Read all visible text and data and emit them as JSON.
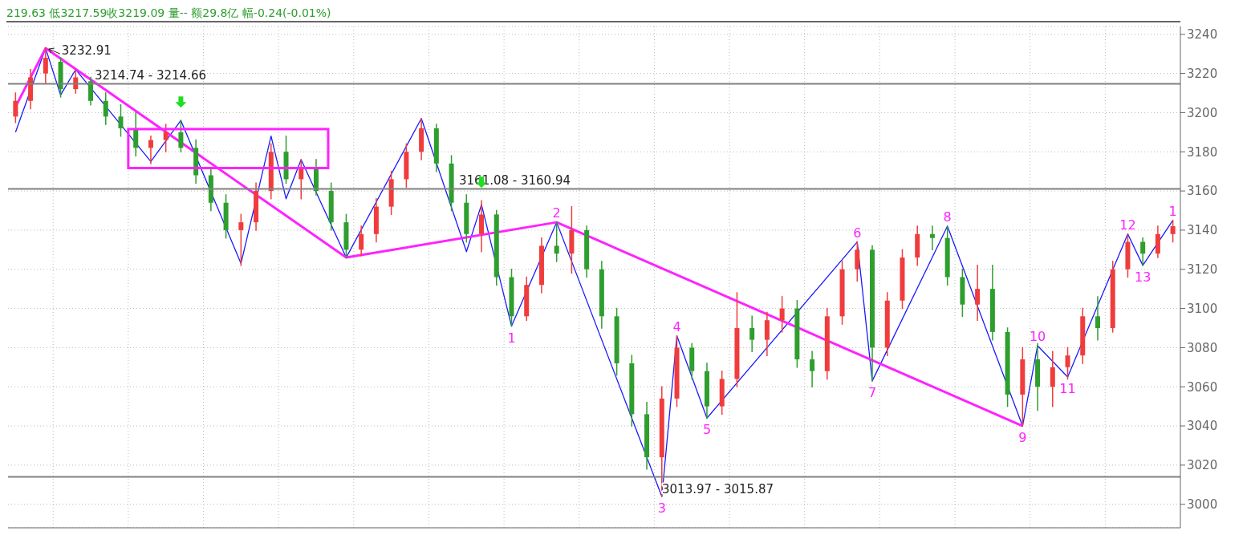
{
  "chart_data": {
    "type": "candlestick",
    "categories": [
      null,
      null,
      null,
      null,
      null,
      null,
      null,
      null,
      null,
      null,
      null,
      null,
      null,
      null,
      null,
      null,
      null,
      null,
      null,
      null,
      null,
      null,
      null,
      null,
      null,
      null,
      null,
      null,
      null,
      null,
      null,
      null,
      null,
      null,
      null,
      null,
      null,
      null,
      null,
      null,
      null,
      null,
      null,
      null,
      null,
      null,
      null,
      null,
      null,
      null,
      null,
      null,
      null,
      null,
      null,
      null,
      null,
      null,
      null,
      null,
      null,
      null,
      null,
      null,
      null,
      null,
      null,
      null,
      null,
      null,
      null,
      null,
      null,
      null,
      null,
      null,
      null,
      null
    ],
    "ylim": [
      2988,
      3244
    ],
    "yticks": [
      3000,
      3020,
      3040,
      3060,
      3080,
      3100,
      3120,
      3140,
      3160,
      3180,
      3200,
      3220,
      3240
    ],
    "grid": true,
    "tick_labels": "y",
    "series": [
      {
        "type": "candlestick",
        "colors": [
          "#f03c3c",
          "#f03c3c",
          "#f03c3c",
          "#2e9e2e",
          "#f03c3c",
          "#2e9e2e",
          "#2e9e2e",
          "#2e9e2e",
          "#2e9e2e",
          "#f03c3c",
          "#f03c3c",
          "#2e9e2e",
          "#2e9e2e",
          "#2e9e2e",
          "#2e9e2e",
          "#f03c3c",
          "#f03c3c",
          "#f03c3c",
          "#2e9e2e",
          "#f03c3c",
          "#2e9e2e",
          "#2e9e2e",
          "#2e9e2e",
          "#f03c3c",
          "#f03c3c",
          "#f03c3c",
          "#f03c3c",
          "#f03c3c",
          "#2e9e2e",
          "#2e9e2e",
          "#2e9e2e",
          "#f03c3c",
          "#2e9e2e",
          "#2e9e2e",
          "#f03c3c",
          "#f03c3c",
          "#2e9e2e",
          "#f03c3c",
          "#2e9e2e",
          "#2e9e2e",
          "#2e9e2e",
          "#2e9e2e",
          "#2e9e2e",
          "#f03c3c",
          "#f03c3c",
          "#2e9e2e",
          "#2e9e2e",
          "#f03c3c",
          "#f03c3c",
          "#2e9e2e",
          "#f03c3c",
          "#f03c3c",
          "#2e9e2e",
          "#2e9e2e",
          "#f03c3c",
          "#f03c3c",
          "#f03c3c",
          "#2e9e2e",
          "#f03c3c",
          "#f03c3c",
          "#f03c3c",
          "#2e9e2e",
          "#2e9e2e",
          "#2e9e2e",
          "#f03c3c",
          "#2e9e2e",
          "#2e9e2e",
          "#f03c3c",
          "#2e9e2e",
          "#f03c3c",
          "#f03c3c",
          "#f03c3c",
          "#2e9e2e",
          "#f03c3c",
          "#f03c3c",
          "#2e9e2e",
          "#f03c3c",
          "#f03c3c"
        ],
        "ohlc": [
          [
            3198,
            3210,
            3195,
            3206
          ],
          [
            3206,
            3222,
            3202,
            3218
          ],
          [
            3220,
            3233,
            3215,
            3228
          ],
          [
            3226,
            3228,
            3208,
            3212
          ],
          [
            3212,
            3222,
            3210,
            3218
          ],
          [
            3216,
            3218,
            3204,
            3206
          ],
          [
            3206,
            3210,
            3194,
            3198
          ],
          [
            3198,
            3204,
            3188,
            3192
          ],
          [
            3192,
            3200,
            3178,
            3182
          ],
          [
            3182,
            3188,
            3174,
            3186
          ],
          [
            3186,
            3194,
            3180,
            3190
          ],
          [
            3190,
            3196,
            3180,
            3182
          ],
          [
            3182,
            3186,
            3164,
            3168
          ],
          [
            3168,
            3172,
            3150,
            3154
          ],
          [
            3154,
            3158,
            3136,
            3140
          ],
          [
            3140,
            3148,
            3122,
            3144
          ],
          [
            3144,
            3164,
            3140,
            3160
          ],
          [
            3160,
            3184,
            3156,
            3180
          ],
          [
            3180,
            3188,
            3164,
            3166
          ],
          [
            3166,
            3176,
            3156,
            3172
          ],
          [
            3172,
            3176,
            3158,
            3160
          ],
          [
            3160,
            3164,
            3140,
            3144
          ],
          [
            3144,
            3148,
            3126,
            3130
          ],
          [
            3130,
            3142,
            3127,
            3138
          ],
          [
            3138,
            3156,
            3134,
            3152
          ],
          [
            3152,
            3170,
            3148,
            3166
          ],
          [
            3166,
            3184,
            3162,
            3180
          ],
          [
            3180,
            3197,
            3176,
            3192
          ],
          [
            3192,
            3194,
            3170,
            3174
          ],
          [
            3174,
            3178,
            3150,
            3154
          ],
          [
            3154,
            3158,
            3134,
            3138
          ],
          [
            3138,
            3155,
            3129,
            3148
          ],
          [
            3148,
            3150,
            3112,
            3116
          ],
          [
            3116,
            3120,
            3091,
            3096
          ],
          [
            3096,
            3116,
            3094,
            3112
          ],
          [
            3112,
            3136,
            3108,
            3132
          ],
          [
            3132,
            3144,
            3124,
            3128
          ],
          [
            3128,
            3152,
            3118,
            3140
          ],
          [
            3140,
            3142,
            3116,
            3120
          ],
          [
            3120,
            3124,
            3090,
            3096
          ],
          [
            3096,
            3100,
            3066,
            3072
          ],
          [
            3072,
            3076,
            3040,
            3046
          ],
          [
            3046,
            3052,
            3018,
            3024
          ],
          [
            3024,
            3060,
            3004,
            3054
          ],
          [
            3054,
            3086,
            3050,
            3080
          ],
          [
            3080,
            3082,
            3064,
            3068
          ],
          [
            3068,
            3072,
            3044,
            3050
          ],
          [
            3050,
            3068,
            3046,
            3064
          ],
          [
            3064,
            3108,
            3060,
            3090
          ],
          [
            3090,
            3096,
            3078,
            3084
          ],
          [
            3084,
            3098,
            3076,
            3094
          ],
          [
            3094,
            3106,
            3088,
            3100
          ],
          [
            3100,
            3104,
            3070,
            3074
          ],
          [
            3074,
            3078,
            3060,
            3068
          ],
          [
            3068,
            3100,
            3064,
            3096
          ],
          [
            3096,
            3124,
            3092,
            3120
          ],
          [
            3120,
            3134,
            3114,
            3130
          ],
          [
            3130,
            3132,
            3063,
            3080
          ],
          [
            3080,
            3108,
            3076,
            3104
          ],
          [
            3104,
            3130,
            3100,
            3126
          ],
          [
            3126,
            3142,
            3122,
            3138
          ],
          [
            3138,
            3142,
            3130,
            3136
          ],
          [
            3136,
            3142,
            3112,
            3116
          ],
          [
            3116,
            3120,
            3096,
            3102
          ],
          [
            3102,
            3122,
            3094,
            3110
          ],
          [
            3110,
            3122,
            3084,
            3088
          ],
          [
            3088,
            3090,
            3050,
            3056
          ],
          [
            3056,
            3080,
            3040,
            3074
          ],
          [
            3074,
            3082,
            3048,
            3060
          ],
          [
            3060,
            3078,
            3050,
            3070
          ],
          [
            3070,
            3080,
            3064,
            3076
          ],
          [
            3076,
            3100,
            3072,
            3096
          ],
          [
            3096,
            3106,
            3084,
            3090
          ],
          [
            3090,
            3124,
            3088,
            3120
          ],
          [
            3120,
            3138,
            3116,
            3134
          ],
          [
            3134,
            3136,
            3122,
            3128
          ],
          [
            3128,
            3142,
            3126,
            3138
          ],
          [
            3138,
            3145,
            3134,
            3142
          ]
        ]
      },
      {
        "type": "line",
        "color": "#1a1aff",
        "values": [
          3190,
          null,
          3232.91,
          3209,
          3222,
          null,
          null,
          null,
          null,
          3175,
          null,
          3196,
          null,
          null,
          null,
          3123,
          null,
          3188,
          3156,
          3176,
          null,
          null,
          3126,
          null,
          null,
          null,
          null,
          3197,
          null,
          null,
          3129,
          3153,
          null,
          3091,
          null,
          null,
          3144,
          null,
          null,
          null,
          null,
          null,
          null,
          3004,
          3086,
          null,
          3044,
          null,
          null,
          null,
          null,
          null,
          null,
          null,
          null,
          null,
          3134,
          3063,
          null,
          null,
          null,
          null,
          3142,
          null,
          null,
          null,
          null,
          3040,
          3081,
          null,
          3065,
          null,
          null,
          null,
          3138,
          3122,
          null,
          3145
        ]
      },
      {
        "type": "line",
        "color": "#ff22ff",
        "values": [
          3203,
          null,
          3232.91,
          null,
          null,
          null,
          null,
          null,
          null,
          null,
          null,
          null,
          null,
          null,
          null,
          null,
          null,
          null,
          null,
          null,
          null,
          null,
          3126,
          null,
          null,
          null,
          null,
          null,
          null,
          null,
          null,
          null,
          null,
          null,
          null,
          null,
          3144,
          null,
          null,
          null,
          null,
          null,
          null,
          null,
          null,
          null,
          null,
          null,
          null,
          null,
          null,
          null,
          null,
          null,
          null,
          null,
          null,
          null,
          null,
          null,
          null,
          null,
          null,
          null,
          null,
          null,
          null,
          3040,
          null,
          null,
          null,
          null,
          null,
          null,
          null,
          null,
          null,
          null
        ]
      }
    ],
    "ref_lines": [
      {
        "axis": "y",
        "value": 3214.74,
        "label": "3214.74 - 3214.66",
        "color": "#808080"
      },
      {
        "axis": "y",
        "value": 3161.08,
        "label": "3161.08 - 3160.94",
        "color": "#808080"
      },
      {
        "axis": "y",
        "value": 3013.97,
        "label": "3013.97 - 3015.87",
        "color": "#808080"
      }
    ],
    "annotations": [
      "219.63 低3217.59收3219.09 量-- 额29.8亿 幅-0.24(-0.01%)",
      "3232.91",
      {
        "text": "1",
        "y": 3091
      },
      {
        "text": "2",
        "y": 3144
      },
      {
        "text": "3",
        "y": 3004
      },
      {
        "text": "4",
        "y": 3086
      },
      {
        "text": "5",
        "y": 3044
      },
      {
        "text": "6",
        "y": 3134
      },
      {
        "text": "7",
        "y": 3063
      },
      {
        "text": "8",
        "y": 3142
      },
      {
        "text": "9",
        "y": 3040
      },
      {
        "text": "10",
        "y": 3081
      },
      {
        "text": "11",
        "y": 3065
      },
      {
        "text": "12",
        "y": 3138
      },
      {
        "text": "13",
        "y": 3122
      },
      {
        "text": "1",
        "y": 3145
      }
    ]
  }
}
